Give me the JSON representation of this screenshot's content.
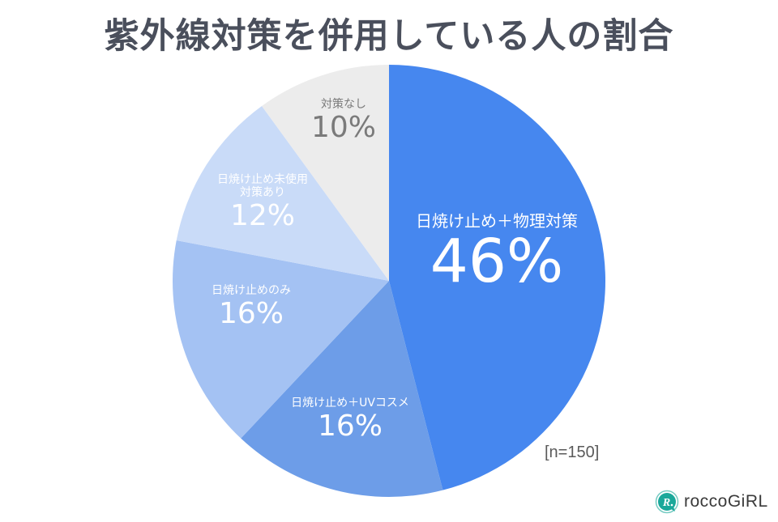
{
  "title": "紫外線対策を併用している人の割合",
  "sample_size": "[n=150]",
  "logo": {
    "icon": "rocco-girl-r-speech-bubble-icon",
    "text": "roccoGiRL",
    "color": "#1aa89a"
  },
  "slices": [
    {
      "name": "日焼け止め＋物理対策",
      "pct": "46%",
      "color": "#4687ef",
      "text_color": "#ffffff"
    },
    {
      "name": "日焼け止め＋UVコスメ",
      "pct": "16%",
      "color": "#6d9de8",
      "text_color": "#ffffff"
    },
    {
      "name": "日焼け止めのみ",
      "pct": "16%",
      "color": "#a4c2f3",
      "text_color": "#ffffff"
    },
    {
      "name": "日焼け止め未使用",
      "name2": "対策あり",
      "pct": "12%",
      "color": "#c9dbf8",
      "text_color": "#ffffff"
    },
    {
      "name": "対策なし",
      "pct": "10%",
      "color": "#ececec",
      "text_color": "#7a7a7a"
    }
  ],
  "chart_data": {
    "type": "pie",
    "title": "紫外線対策を併用している人の割合",
    "categories": [
      "日焼け止め＋物理対策",
      "日焼け止め＋UVコスメ",
      "日焼け止めのみ",
      "日焼け止め未使用 対策あり",
      "対策なし"
    ],
    "values": [
      46,
      16,
      16,
      12,
      10
    ],
    "unit": "%",
    "colors": [
      "#4687ef",
      "#6d9de8",
      "#a4c2f3",
      "#c9dbf8",
      "#ececec"
    ],
    "start_angle": "12 o'clock, clockwise",
    "annotations": [
      "[n=150]"
    ],
    "legend": "none (labels inside slices)"
  }
}
